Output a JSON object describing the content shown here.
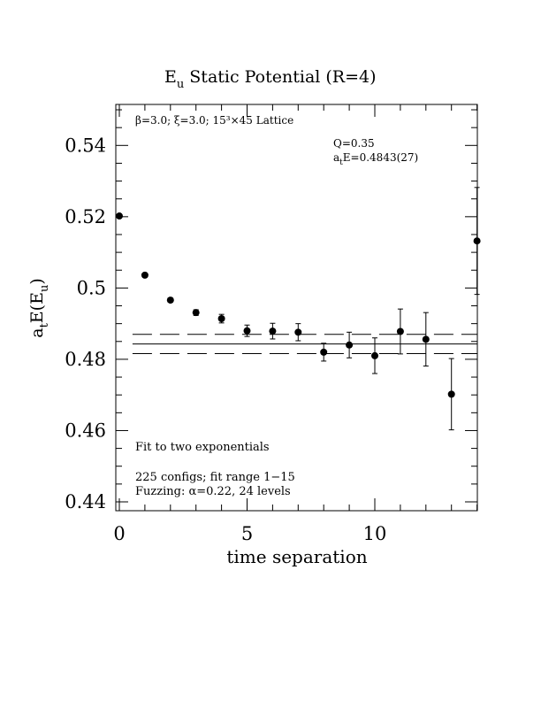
{
  "chart_data": {
    "type": "scatter",
    "title_main": "E",
    "title_sub": "u",
    "title_rest": " Static Potential (R=4)",
    "xlabel": "time separation",
    "ylabel": {
      "a": "a",
      "t": "t",
      "E": "E(E",
      "u": "u",
      "close": ")"
    },
    "xlim": [
      0,
      14
    ],
    "ylim": [
      0.436,
      0.551
    ],
    "x_ticks": [
      0,
      5,
      10
    ],
    "x_tick_labels": [
      "0",
      "5",
      "10"
    ],
    "y_ticks": [
      0.44,
      0.46,
      0.48,
      0.5,
      0.52,
      0.54
    ],
    "y_tick_labels": [
      "0.44",
      "0.46",
      "0.48",
      "0.5",
      "0.52",
      "0.54"
    ],
    "points": [
      {
        "x": 0,
        "y": 0.5202,
        "err": 0.0004
      },
      {
        "x": 1,
        "y": 0.5036,
        "err": 0.0005
      },
      {
        "x": 2,
        "y": 0.4966,
        "err": 0.0006
      },
      {
        "x": 3,
        "y": 0.4931,
        "err": 0.0008
      },
      {
        "x": 4,
        "y": 0.4914,
        "err": 0.0012
      },
      {
        "x": 5,
        "y": 0.488,
        "err": 0.0016
      },
      {
        "x": 6,
        "y": 0.4879,
        "err": 0.0022
      },
      {
        "x": 7,
        "y": 0.4876,
        "err": 0.0024
      },
      {
        "x": 8,
        "y": 0.482,
        "err": 0.0025
      },
      {
        "x": 9,
        "y": 0.484,
        "err": 0.0036
      },
      {
        "x": 10,
        "y": 0.481,
        "err": 0.005
      },
      {
        "x": 11,
        "y": 0.4878,
        "err": 0.0063
      },
      {
        "x": 12,
        "y": 0.4856,
        "err": 0.0075
      },
      {
        "x": 13,
        "y": 0.4702,
        "err": 0.01
      },
      {
        "x": 14,
        "y": 0.5132,
        "err": 0.015
      }
    ],
    "fit": {
      "from": 1,
      "to": 15,
      "value": 0.4843,
      "error": 0.0027
    },
    "annotations": {
      "lattice": "β=3.0; ξ=3.0; 15³×45 Lattice",
      "q": "Q=0.35",
      "energy_a": "a",
      "energy_t": "t",
      "energy_rest": "E=0.4843(27)",
      "fit_method": "Fit to two exponentials",
      "configs": "225 configs; fit range 1−15",
      "fuzzing": "Fuzzing: α=0.22, 24 levels"
    },
    "grid": false,
    "legend": "none"
  }
}
